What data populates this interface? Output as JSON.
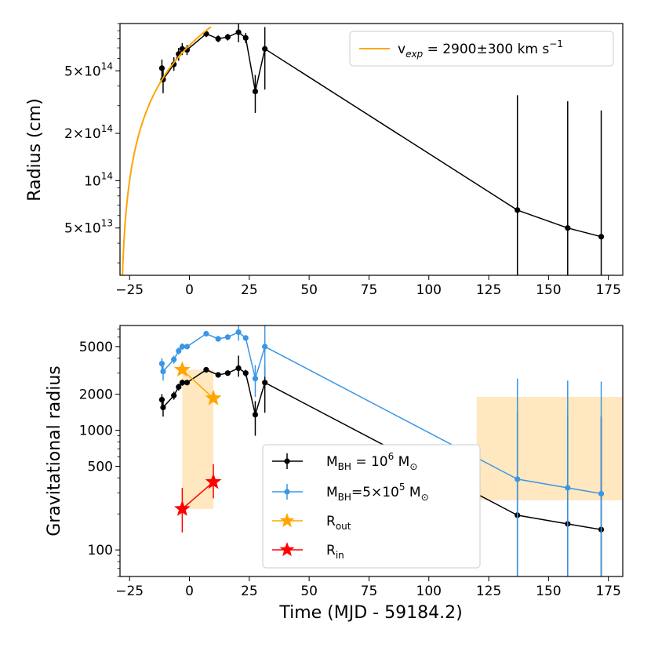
{
  "chart_data": [
    {
      "type": "line",
      "xlabel": "",
      "ylabel": "Radius (cm)",
      "xlim": [
        -29,
        181
      ],
      "ylim": [
        25000000000000,
        1000000000000000
      ],
      "yscale": "log",
      "xticks": [
        -25,
        0,
        25,
        50,
        75,
        100,
        125,
        150,
        175
      ],
      "xtick_labels": [
        "−25",
        "0",
        "25",
        "50",
        "75",
        "100",
        "125",
        "150",
        "175"
      ],
      "yticks": [
        {
          "value": 500000000000000,
          "base": "5×10",
          "exp": "14"
        },
        {
          "value": 200000000000000,
          "base": "2×10",
          "exp": "14"
        },
        {
          "value": 100000000000000,
          "base": "10",
          "exp": "14"
        },
        {
          "value": 50000000000000,
          "base": "5×10",
          "exp": "13"
        }
      ],
      "legend": {
        "position": "top-right",
        "label_main": "v",
        "label_sub": "exp",
        "label_rest": " = 2900±300 km s",
        "label_sup": "−1"
      },
      "fit_curve": {
        "name": "v_exp fit",
        "color": "#FFA500",
        "velocity_km_s": 2900,
        "t0": -29,
        "t_end": 9
      },
      "series": [
        {
          "name": "Radius",
          "color": "#000000",
          "x": [
            -11.5,
            -11,
            -6.5,
            -4.5,
            -3,
            -1,
            7,
            12,
            16,
            20.5,
            23.5,
            27.5,
            31.5,
            137,
            158,
            172
          ],
          "y": [
            520000000000000,
            440000000000000,
            550000000000000,
            640000000000000,
            690000000000000,
            680000000000000,
            860000000000000,
            800000000000000,
            820000000000000,
            880000000000000,
            810000000000000,
            370000000000000,
            690000000000000,
            65000000000000,
            50000000000000,
            44000000000000
          ],
          "ylo": [
            450000000000000,
            360000000000000,
            500000000000000,
            580000000000000,
            630000000000000,
            630000000000000,
            820000000000000,
            760000000000000,
            780000000000000,
            760000000000000,
            750000000000000,
            270000000000000,
            380000000000000,
            10000000000000,
            10000000000000,
            10000000000000
          ],
          "yhi": [
            590000000000000,
            530000000000000,
            610000000000000,
            700000000000000,
            750000000000000,
            730000000000000,
            900000000000000,
            840000000000000,
            860000000000000,
            1000000000000000,
            870000000000000,
            470000000000000,
            950000000000000,
            350000000000000,
            320000000000000,
            280000000000000
          ]
        }
      ]
    },
    {
      "type": "line",
      "xlabel": "Time (MJD - 59184.2)",
      "ylabel": "Gravitational radius",
      "xlim": [
        -29,
        181
      ],
      "ylim": [
        60,
        7500
      ],
      "yscale": "log",
      "xticks": [
        -25,
        0,
        25,
        50,
        75,
        100,
        125,
        150,
        175
      ],
      "xtick_labels": [
        "−25",
        "0",
        "25",
        "50",
        "75",
        "100",
        "125",
        "150",
        "175"
      ],
      "yticks": [
        5000,
        2000,
        1000,
        500,
        100
      ],
      "shaded_regions": [
        {
          "x": [
            -3,
            10
          ],
          "y": [
            220,
            3200
          ],
          "color": "#FFA500"
        },
        {
          "x": [
            120,
            181
          ],
          "y": [
            260,
            1900
          ],
          "color": "#FFA500"
        }
      ],
      "series": [
        {
          "name": "M_BH = 10^6 M_sun",
          "legend_main": "M",
          "legend_sub": "BH",
          "legend_mid": " = 10",
          "legend_sup": "6",
          "legend_end": " M",
          "legend_sub2": "⊙",
          "color": "#000000",
          "x": [
            -11.5,
            -11,
            -6.5,
            -4.5,
            -3,
            -1,
            7,
            12,
            16,
            20.5,
            23.5,
            27.5,
            31.5,
            137,
            158,
            172
          ],
          "y": [
            1800,
            1550,
            1950,
            2300,
            2500,
            2500,
            3200,
            2900,
            3000,
            3300,
            3000,
            1350,
            2500,
            195,
            165,
            148
          ],
          "ylo": [
            1600,
            1300,
            1800,
            2150,
            2350,
            2400,
            3100,
            2800,
            2900,
            2800,
            2800,
            900,
            1400,
            10,
            10,
            10
          ],
          "yhi": [
            2000,
            1800,
            2100,
            2450,
            2650,
            2600,
            3300,
            3000,
            3100,
            4200,
            3200,
            1750,
            3500,
            1400,
            1350,
            1300
          ]
        },
        {
          "name": "M_BH = 5x10^5 M_sun",
          "legend_main": "M",
          "legend_sub": "BH",
          "legend_mid": "=5×10",
          "legend_sup": "5",
          "legend_end": " M",
          "legend_sub2": "⊙",
          "color": "#3A96E6",
          "x": [
            -11.5,
            -11,
            -6.5,
            -4.5,
            -3,
            -1,
            7,
            12,
            16,
            20.5,
            23.5,
            27.5,
            31.5,
            137,
            158,
            172
          ],
          "y": [
            3600,
            3100,
            3900,
            4600,
            5000,
            5000,
            6400,
            5800,
            6000,
            6600,
            5900,
            2700,
            5000,
            390,
            330,
            295
          ],
          "ylo": [
            3200,
            2600,
            3600,
            4300,
            4700,
            4800,
            6200,
            5600,
            5800,
            5600,
            5600,
            1900,
            2800,
            10,
            10,
            10
          ],
          "yhi": [
            4000,
            3600,
            4200,
            4900,
            5300,
            5200,
            6600,
            6000,
            6200,
            8400,
            6200,
            3500,
            7500,
            2700,
            2600,
            2550
          ]
        },
        {
          "name": "R_out",
          "legend_main": "R",
          "legend_sub": "out",
          "color": "#FFA500",
          "marker": "star",
          "x": [
            -3,
            10
          ],
          "y": [
            3200,
            1850
          ],
          "ylo": [
            3200,
            1850
          ],
          "yhi": [
            3200,
            1850
          ]
        },
        {
          "name": "R_in",
          "legend_main": "R",
          "legend_sub": "in",
          "color": "#FF0000",
          "marker": "star",
          "x": [
            -3,
            10
          ],
          "y": [
            220,
            370
          ],
          "ylo": [
            140,
            270
          ],
          "yhi": [
            330,
            520
          ]
        }
      ]
    }
  ]
}
